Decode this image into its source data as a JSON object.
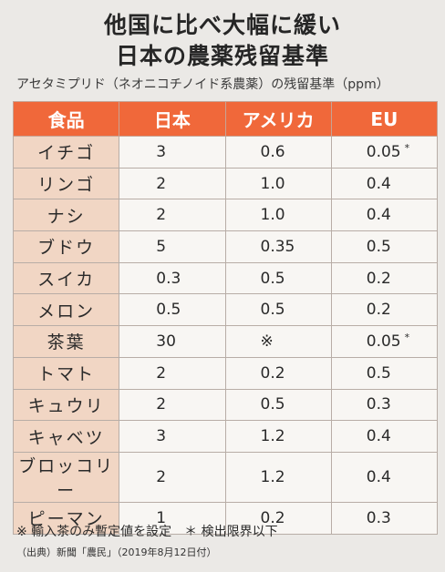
{
  "title_line1": "他国に比べ大幅に緩い",
  "title_line2": "日本の農薬残留基準",
  "subtitle": "アセタミプリド（ネオニコチノイド系農薬）の残留基準（ppm）",
  "headers": [
    "食品",
    "日本",
    "アメリカ",
    "EU"
  ],
  "rows": [
    {
      "food": "イチゴ",
      "japan": "3",
      "usa": "0.6",
      "eu": "0.05",
      "mark": "*"
    },
    {
      "food": "リンゴ",
      "japan": "2",
      "usa": "1.0",
      "eu": "0.4",
      "mark": ""
    },
    {
      "food": "ナシ",
      "japan": "2",
      "usa": "1.0",
      "eu": "0.4",
      "mark": ""
    },
    {
      "food": "ブドウ",
      "japan": "5",
      "usa": "0.35",
      "eu": "0.5",
      "mark": ""
    },
    {
      "food": "スイカ",
      "japan": "0.3",
      "usa": "0.5",
      "eu": "0.2",
      "mark": ""
    },
    {
      "food": "メロン",
      "japan": "0.5",
      "usa": "0.5",
      "eu": "0.2",
      "mark": ""
    },
    {
      "food": "茶葉",
      "japan": "30",
      "usa": "※",
      "eu": "0.05",
      "mark": "*"
    },
    {
      "food": "トマト",
      "japan": "2",
      "usa": "0.2",
      "eu": "0.5",
      "mark": ""
    },
    {
      "food": "キュウリ",
      "japan": "2",
      "usa": "0.5",
      "eu": "0.3",
      "mark": ""
    },
    {
      "food": "キャベツ",
      "japan": "3",
      "usa": "1.2",
      "eu": "0.4",
      "mark": ""
    },
    {
      "food": "ブロッコリー",
      "japan": "2",
      "usa": "1.2",
      "eu": "0.4",
      "mark": ""
    },
    {
      "food": "ピーマン",
      "japan": "1",
      "usa": "0.2",
      "eu": "0.3",
      "mark": ""
    }
  ],
  "footnote": "※ 輸入茶のみ暫定値を設定　＊ 検出限界以下",
  "source": "（出典）新聞「農民」（2019年8月12日付）",
  "colors": {
    "header_bg": "#f0683a",
    "food_col_bg": "#f1d6c4",
    "page_bg": "#ebe9e6"
  }
}
